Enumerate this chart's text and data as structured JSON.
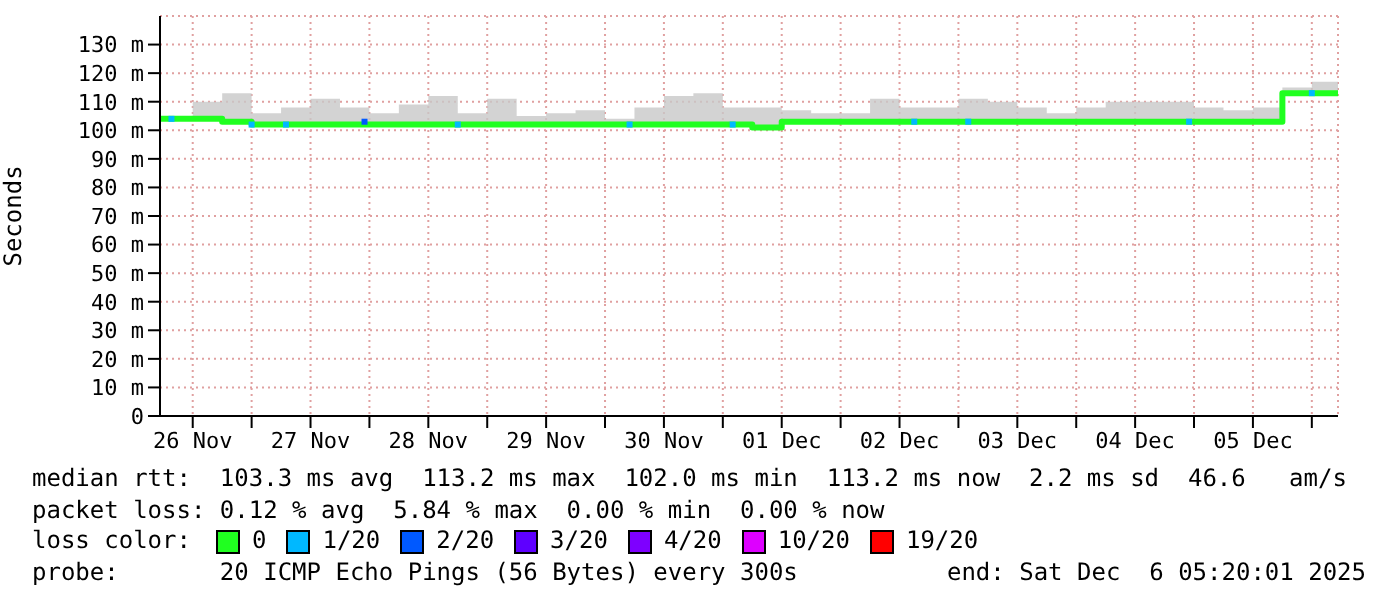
{
  "chart_data": {
    "type": "step",
    "ylabel": "Seconds",
    "legend_title": "loss color:",
    "legend": "bottom",
    "grid": true,
    "marker": "none",
    "xlim": [
      "2025-11-26T05:20",
      "2025-12-06T05:20"
    ],
    "xticks": [
      {
        "value": "2025-11-26T12:00",
        "label": "26 Nov"
      },
      {
        "value": "2025-11-27T00:00",
        "label": null
      },
      {
        "value": "2025-11-27T12:00",
        "label": "27 Nov"
      },
      {
        "value": "2025-11-28T00:00",
        "label": null
      },
      {
        "value": "2025-11-28T12:00",
        "label": "28 Nov"
      },
      {
        "value": "2025-11-29T00:00",
        "label": null
      },
      {
        "value": "2025-11-29T12:00",
        "label": "29 Nov"
      },
      {
        "value": "2025-11-30T00:00",
        "label": null
      },
      {
        "value": "2025-11-30T12:00",
        "label": "30 Nov"
      },
      {
        "value": "2025-12-01T00:00",
        "label": null
      },
      {
        "value": "2025-12-01T12:00",
        "label": "01 Dec"
      },
      {
        "value": "2025-12-02T00:00",
        "label": null
      },
      {
        "value": "2025-12-02T12:00",
        "label": "02 Dec"
      },
      {
        "value": "2025-12-03T00:00",
        "label": null
      },
      {
        "value": "2025-12-03T12:00",
        "label": "03 Dec"
      },
      {
        "value": "2025-12-04T00:00",
        "label": null
      },
      {
        "value": "2025-12-04T12:00",
        "label": "04 Dec"
      },
      {
        "value": "2025-12-05T00:00",
        "label": null
      },
      {
        "value": "2025-12-05T12:00",
        "label": "05 Dec"
      },
      {
        "value": "2025-12-06T00:00",
        "label": null
      }
    ],
    "ylim": [
      0,
      140
    ],
    "yticks": [
      0,
      {
        "value": 10,
        "label": "10 m"
      },
      {
        "value": 20,
        "label": "20 m"
      },
      {
        "value": 30,
        "label": "30 m"
      },
      {
        "value": 40,
        "label": "40 m"
      },
      {
        "value": 50,
        "label": "50 m"
      },
      {
        "value": 60,
        "label": "60 m"
      },
      {
        "value": 70,
        "label": "70 m"
      },
      {
        "value": 80,
        "label": "80 m"
      },
      {
        "value": 90,
        "label": "90 m"
      },
      {
        "value": 100,
        "label": "100 m"
      },
      {
        "value": 110,
        "label": "110 m"
      },
      {
        "value": 120,
        "label": "120 m"
      },
      {
        "value": 130,
        "label": "130 m"
      }
    ],
    "series": [
      {
        "name": "0",
        "color": "#20ff20",
        "x": [
          "2025-11-26T05:20",
          "2025-11-26T12:00",
          "2025-11-26T18:00",
          "2025-11-27T00:00",
          "2025-11-27T06:00",
          "2025-11-27T12:00",
          "2025-11-27T18:00",
          "2025-11-28T00:00",
          "2025-11-28T06:00",
          "2025-11-28T12:00",
          "2025-11-28T18:00",
          "2025-11-29T00:00",
          "2025-11-29T06:00",
          "2025-11-29T12:00",
          "2025-11-29T18:00",
          "2025-11-30T00:00",
          "2025-11-30T06:00",
          "2025-11-30T12:00",
          "2025-11-30T18:00",
          "2025-12-01T00:00",
          "2025-12-01T06:00",
          "2025-12-01T12:00",
          "2025-12-01T18:00",
          "2025-12-02T00:00",
          "2025-12-02T06:00",
          "2025-12-02T12:00",
          "2025-12-02T18:00",
          "2025-12-03T00:00",
          "2025-12-03T06:00",
          "2025-12-03T12:00",
          "2025-12-03T18:00",
          "2025-12-04T00:00",
          "2025-12-04T06:00",
          "2025-12-04T12:00",
          "2025-12-04T18:00",
          "2025-12-05T00:00",
          "2025-12-05T06:00",
          "2025-12-05T12:00",
          "2025-12-05T18:00",
          "2025-12-06T00:00",
          "2025-12-06T05:20"
        ],
        "values": [
          104,
          104,
          103,
          102,
          102,
          102,
          102,
          102,
          102,
          102,
          102,
          102,
          102,
          102,
          102,
          102,
          102,
          102,
          102,
          102,
          101,
          103,
          103,
          103,
          103,
          103,
          103,
          103,
          103,
          103,
          103,
          103,
          103,
          103,
          103,
          103,
          103,
          103,
          113,
          113,
          113
        ],
        "lower": [
          104,
          104,
          103,
          102,
          102,
          102,
          102,
          102,
          102,
          102,
          102,
          102,
          102,
          102,
          102,
          102,
          102,
          102,
          102,
          102,
          101,
          103,
          103,
          103,
          103,
          103,
          103,
          103,
          103,
          103,
          103,
          103,
          103,
          103,
          103,
          103,
          103,
          103,
          113,
          113,
          113
        ],
        "upper": [
          105,
          110,
          113,
          106,
          108,
          111,
          108,
          106,
          109,
          112,
          106,
          111,
          105,
          106,
          107,
          104,
          108,
          112,
          113,
          108,
          108,
          107,
          106,
          106,
          111,
          108,
          108,
          111,
          110,
          108,
          106,
          108,
          110,
          110,
          110,
          108,
          107,
          108,
          115,
          117,
          115
        ]
      },
      {
        "name": "1/20",
        "color": "#00b8ff",
        "type": "scatter",
        "marker": "square",
        "x": [
          "2025-11-26T07:40",
          "2025-11-27T00:00",
          "2025-11-27T07:00",
          "2025-11-28T18:00",
          "2025-11-30T05:00",
          "2025-12-01T02:00",
          "2025-12-02T15:00",
          "2025-12-03T02:00",
          "2025-12-04T23:00",
          "2025-12-06T00:00"
        ],
        "values": [
          104,
          102,
          102,
          102,
          102,
          102,
          103,
          103,
          103,
          113
        ]
      },
      {
        "name": "2/20",
        "color": "#0059ff",
        "type": "scatter",
        "marker": "square",
        "x": [
          "2025-11-27T23:00"
        ],
        "values": [
          103
        ]
      },
      {
        "name": "3/20",
        "color": "#5e00ff",
        "type": "scatter",
        "marker": "square"
      },
      {
        "name": "4/20",
        "color": "#7e00ff",
        "type": "scatter",
        "marker": "square"
      },
      {
        "name": "10/20",
        "color": "#dd00ff",
        "type": "scatter",
        "marker": "square"
      },
      {
        "name": "19/20",
        "color": "#ff0000",
        "type": "scatter",
        "marker": "square"
      }
    ],
    "annotations": [
      "median rtt:  103.3 ms avg  113.2 ms max  102.0 ms min  113.2 ms now  2.2 ms sd  46.6   am/s",
      "packet loss: 0.12 % avg  5.84 % max  0.00 % min  0.00 % now",
      "probe:       20 ICMP Echo Pings (56 Bytes) every 300s",
      "end: Sat Dec  6 05:20:01 2025"
    ]
  }
}
